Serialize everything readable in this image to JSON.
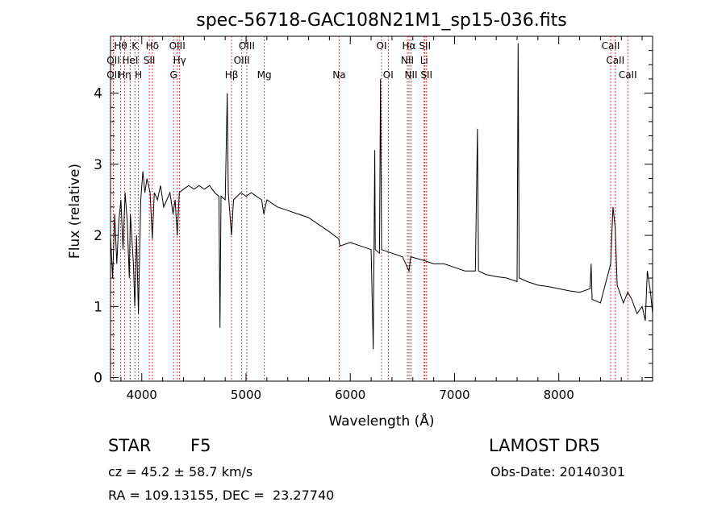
{
  "chart_data": {
    "type": "line",
    "title": "spec-56718-GAC108N21M1_sp15-036.fits",
    "xlabel": "Wavelength (Å)",
    "ylabel": "Flux (relative)",
    "xlim": [
      3700,
      8900
    ],
    "ylim": [
      -0.05,
      4.8
    ],
    "x_ticks": [
      4000,
      5000,
      6000,
      7000,
      8000
    ],
    "x_tick_labels": [
      "4000",
      "5000",
      "6000",
      "7000",
      "8000"
    ],
    "y_ticks": [
      0,
      1,
      2,
      3,
      4
    ],
    "y_tick_labels": [
      "0",
      "1",
      "2",
      "3",
      "4"
    ],
    "line_color": "#000000",
    "marker_color": "#cc0000",
    "series": [
      {
        "values": [
          [
            3700,
            2.0
          ],
          [
            3720,
            1.4
          ],
          [
            3740,
            2.3
          ],
          [
            3760,
            1.6
          ],
          [
            3780,
            2.2
          ],
          [
            3800,
            2.5
          ],
          [
            3820,
            1.8
          ],
          [
            3840,
            2.6
          ],
          [
            3860,
            2.2
          ],
          [
            3880,
            1.4
          ],
          [
            3890,
            2.3
          ],
          [
            3920,
            1.6
          ],
          [
            3933,
            1.0
          ],
          [
            3950,
            2.0
          ],
          [
            3968,
            0.9
          ],
          [
            3990,
            2.5
          ],
          [
            4010,
            2.9
          ],
          [
            4030,
            2.6
          ],
          [
            4050,
            2.8
          ],
          [
            4080,
            2.6
          ],
          [
            4101,
            1.95
          ],
          [
            4120,
            2.6
          ],
          [
            4150,
            2.5
          ],
          [
            4180,
            2.7
          ],
          [
            4210,
            2.4
          ],
          [
            4240,
            2.5
          ],
          [
            4270,
            2.6
          ],
          [
            4300,
            2.3
          ],
          [
            4320,
            2.5
          ],
          [
            4340,
            2.0
          ],
          [
            4360,
            2.6
          ],
          [
            4400,
            2.65
          ],
          [
            4450,
            2.7
          ],
          [
            4500,
            2.65
          ],
          [
            4550,
            2.7
          ],
          [
            4600,
            2.65
          ],
          [
            4650,
            2.7
          ],
          [
            4700,
            2.6
          ],
          [
            4740,
            2.55
          ],
          [
            4750,
            0.7
          ],
          [
            4760,
            2.55
          ],
          [
            4800,
            2.5
          ],
          [
            4820,
            4.0
          ],
          [
            4830,
            2.6
          ],
          [
            4861,
            2.0
          ],
          [
            4880,
            2.5
          ],
          [
            4950,
            2.6
          ],
          [
            5000,
            2.55
          ],
          [
            5050,
            2.6
          ],
          [
            5100,
            2.55
          ],
          [
            5150,
            2.5
          ],
          [
            5170,
            2.3
          ],
          [
            5200,
            2.5
          ],
          [
            5300,
            2.4
          ],
          [
            5400,
            2.35
          ],
          [
            5500,
            2.3
          ],
          [
            5600,
            2.25
          ],
          [
            5700,
            2.15
          ],
          [
            5800,
            2.05
          ],
          [
            5890,
            1.95
          ],
          [
            5900,
            1.85
          ],
          [
            6000,
            1.9
          ],
          [
            6100,
            1.85
          ],
          [
            6200,
            1.8
          ],
          [
            6220,
            0.4
          ],
          [
            6235,
            3.2
          ],
          [
            6240,
            1.8
          ],
          [
            6280,
            1.75
          ],
          [
            6290,
            4.2
          ],
          [
            6300,
            1.8
          ],
          [
            6400,
            1.75
          ],
          [
            6500,
            1.7
          ],
          [
            6563,
            1.5
          ],
          [
            6580,
            1.7
          ],
          [
            6700,
            1.65
          ],
          [
            6800,
            1.6
          ],
          [
            6900,
            1.6
          ],
          [
            7000,
            1.55
          ],
          [
            7100,
            1.5
          ],
          [
            7200,
            1.5
          ],
          [
            7220,
            3.5
          ],
          [
            7230,
            1.5
          ],
          [
            7300,
            1.45
          ],
          [
            7400,
            1.42
          ],
          [
            7500,
            1.4
          ],
          [
            7600,
            1.35
          ],
          [
            7610,
            4.7
          ],
          [
            7620,
            1.4
          ],
          [
            7700,
            1.35
          ],
          [
            7800,
            1.3
          ],
          [
            7900,
            1.28
          ],
          [
            8000,
            1.25
          ],
          [
            8100,
            1.22
          ],
          [
            8200,
            1.2
          ],
          [
            8300,
            1.25
          ],
          [
            8310,
            1.6
          ],
          [
            8320,
            1.1
          ],
          [
            8400,
            1.05
          ],
          [
            8498,
            1.6
          ],
          [
            8520,
            2.4
          ],
          [
            8542,
            2.1
          ],
          [
            8560,
            1.3
          ],
          [
            8620,
            1.05
          ],
          [
            8662,
            1.2
          ],
          [
            8700,
            1.1
          ],
          [
            8750,
            0.9
          ],
          [
            8800,
            1.0
          ],
          [
            8830,
            0.8
          ],
          [
            8850,
            1.5
          ],
          [
            8880,
            1.2
          ],
          [
            8900,
            0.9
          ]
        ]
      }
    ],
    "lines_top": [
      {
        "x": 3797,
        "label": "Hθ"
      },
      {
        "x": 3934,
        "label": "K"
      },
      {
        "x": 4101,
        "label": "Hδ"
      },
      {
        "x": 4340,
        "label": "OIII"
      },
      {
        "x": 5007,
        "label": "OIII"
      },
      {
        "x": 6300,
        "label": "OI"
      },
      {
        "x": 6563,
        "label": "Hα"
      },
      {
        "x": 6716,
        "label": "SII"
      },
      {
        "x": 8498,
        "label": "CaII"
      }
    ],
    "lines_mid": [
      {
        "x": 3727,
        "label": "OII"
      },
      {
        "x": 3889,
        "label": "HeI"
      },
      {
        "x": 4072,
        "label": "SII"
      },
      {
        "x": 4363,
        "label": "Hγ"
      },
      {
        "x": 4959,
        "label": "OIII"
      },
      {
        "x": 6548,
        "label": "NII"
      },
      {
        "x": 6708,
        "label": "Li"
      },
      {
        "x": 8542,
        "label": "CaII"
      }
    ],
    "lines_low": [
      {
        "x": 3727,
        "label": "OII"
      },
      {
        "x": 3835,
        "label": "Hη"
      },
      {
        "x": 3968,
        "label": "H"
      },
      {
        "x": 4305,
        "label": "G"
      },
      {
        "x": 4861,
        "label": "Hβ"
      },
      {
        "x": 5175,
        "label": "Mg"
      },
      {
        "x": 5893,
        "label": "Na"
      },
      {
        "x": 6364,
        "label": "OI"
      },
      {
        "x": 6583,
        "label": "NII"
      },
      {
        "x": 6731,
        "label": "SII"
      },
      {
        "x": 8662,
        "label": "CaII"
      }
    ]
  },
  "info": {
    "object_class": "STAR",
    "subclass": "F5",
    "survey": "LAMOST DR5",
    "cz": "cz = 45.2 ± 58.7 km/s",
    "obs_date": "Obs-Date: 20140301",
    "coords": "RA = 109.13155, DEC =  23.27740"
  }
}
